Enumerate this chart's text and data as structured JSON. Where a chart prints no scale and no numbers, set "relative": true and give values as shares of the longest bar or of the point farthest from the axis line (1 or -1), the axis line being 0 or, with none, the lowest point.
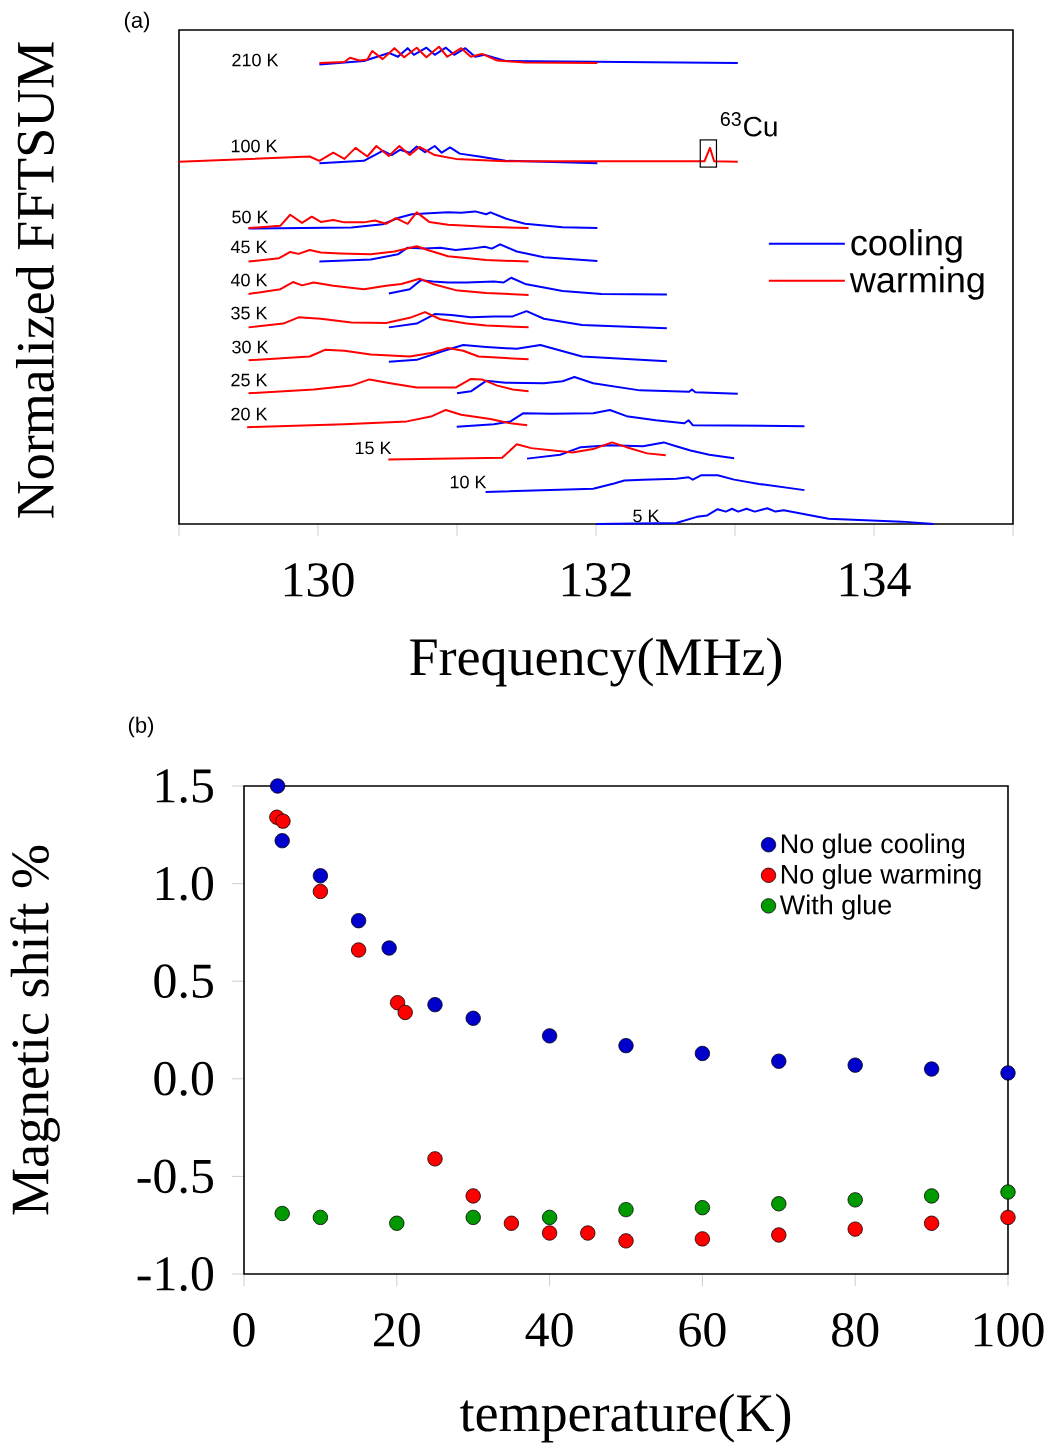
{
  "chart_data": [
    {
      "type": "line",
      "title": "(a)",
      "xlabel": "Frequency(MHz)",
      "ylabel": "Normalized FFTSUM",
      "relative": true,
      "xlim": [
        129,
        135
      ],
      "xticks": [
        {
          "value": 129,
          "label": null
        },
        130,
        {
          "value": 131,
          "label": null
        },
        132,
        {
          "value": 133,
          "label": null
        },
        134,
        {
          "value": 135,
          "label": null
        }
      ],
      "legend": "right",
      "series": [
        {
          "name": "cooling",
          "color": "#0000ff",
          "x": [
            130.01,
            130.33,
            130.51,
            130.575,
            130.645,
            130.69,
            130.78,
            130.84,
            130.92,
            130.98,
            131.06,
            131.13,
            131.2,
            131.35,
            133.02
          ],
          "values": [
            0.963,
            0.97,
            0.987,
            0.979,
            0.997,
            0.983,
            0.998,
            0.983,
            0.998,
            0.983,
            0.997,
            0.979,
            0.983,
            0.97,
            0.966
          ]
        },
        {
          "name": "warming",
          "color": "#ff0000",
          "x": [
            130.01,
            130.19,
            130.23,
            130.3,
            130.355,
            130.39,
            130.465,
            130.55,
            130.62,
            130.71,
            130.78,
            130.87,
            130.93,
            131.03,
            131.1,
            131.18,
            131.29,
            131.49,
            132.01
          ],
          "values": [
            0.966,
            0.968,
            0.977,
            0.971,
            0.973,
            0.991,
            0.974,
            0.997,
            0.978,
            0.998,
            0.978,
            1.0,
            0.979,
            0.997,
            0.979,
            0.985,
            0.971,
            0.967,
            0.966
          ]
        },
        {
          "color": "#0000ff",
          "x": [
            130.01,
            130.33,
            130.465,
            130.53,
            130.59,
            130.66,
            130.71,
            130.77,
            130.84,
            130.89,
            130.95,
            131.02,
            131.16,
            131.35,
            132.01
          ],
          "values": [
            0.756,
            0.761,
            0.782,
            0.773,
            0.784,
            0.778,
            0.791,
            0.779,
            0.792,
            0.778,
            0.789,
            0.776,
            0.77,
            0.761,
            0.756
          ]
        },
        {
          "color": "#ff0000",
          "x": [
            129.0,
            129.94,
            130.01,
            130.11,
            130.19,
            130.27,
            130.355,
            130.42,
            130.51,
            130.585,
            130.66,
            130.73,
            130.84,
            130.99,
            131.35,
            132.78,
            132.82,
            132.85,
            133.02
          ],
          "values": [
            0.759,
            0.77,
            0.761,
            0.778,
            0.765,
            0.788,
            0.77,
            0.792,
            0.771,
            0.792,
            0.773,
            0.79,
            0.773,
            0.765,
            0.76,
            0.76,
            0.788,
            0.76,
            0.759
          ]
        },
        {
          "color": "#0000ff",
          "x": [
            129.5,
            130.24,
            130.465,
            130.575,
            130.675,
            130.8,
            130.935,
            131.03,
            131.13,
            131.21,
            131.24,
            131.35,
            131.49,
            131.76,
            132.01
          ],
          "values": [
            0.619,
            0.621,
            0.628,
            0.641,
            0.649,
            0.651,
            0.653,
            0.652,
            0.655,
            0.649,
            0.653,
            0.64,
            0.629,
            0.622,
            0.62
          ]
        },
        {
          "color": "#ff0000",
          "x": [
            129.5,
            129.73,
            129.8,
            129.885,
            129.955,
            130.02,
            130.11,
            130.19,
            130.33,
            130.41,
            130.49,
            130.56,
            130.645,
            130.71,
            130.8,
            130.935,
            131.21,
            131.515
          ],
          "values": [
            0.62,
            0.625,
            0.648,
            0.631,
            0.644,
            0.633,
            0.637,
            0.632,
            0.632,
            0.636,
            0.629,
            0.641,
            0.629,
            0.653,
            0.633,
            0.627,
            0.623,
            0.62
          ]
        },
        {
          "color": "#0000ff",
          "x": [
            130.01,
            130.38,
            130.575,
            130.645,
            130.77,
            130.88,
            130.99,
            131.1,
            131.2,
            131.25,
            131.31,
            131.43,
            131.625,
            132.01
          ],
          "values": [
            0.55,
            0.554,
            0.565,
            0.579,
            0.577,
            0.579,
            0.574,
            0.577,
            0.581,
            0.577,
            0.586,
            0.571,
            0.559,
            0.551
          ]
        },
        {
          "color": "#ff0000",
          "x": [
            129.5,
            129.72,
            129.8,
            129.86,
            129.94,
            130.02,
            130.16,
            130.38,
            130.55,
            130.71,
            130.8,
            130.935,
            131.21,
            131.515
          ],
          "values": [
            0.55,
            0.557,
            0.57,
            0.566,
            0.574,
            0.569,
            0.567,
            0.565,
            0.571,
            0.582,
            0.573,
            0.561,
            0.553,
            0.55
          ]
        },
        {
          "color": "#0000ff",
          "x": [
            130.51,
            130.66,
            130.74,
            130.825,
            130.935,
            131.07,
            131.265,
            131.335,
            131.39,
            131.49,
            131.76,
            132.04,
            132.51
          ],
          "values": [
            0.483,
            0.492,
            0.511,
            0.508,
            0.506,
            0.506,
            0.508,
            0.506,
            0.516,
            0.503,
            0.488,
            0.482,
            0.481
          ]
        },
        {
          "color": "#ff0000",
          "x": [
            129.5,
            129.73,
            129.82,
            129.885,
            129.97,
            130.11,
            130.33,
            130.49,
            130.6,
            130.73,
            130.825,
            130.99,
            131.21,
            131.515
          ],
          "values": [
            0.482,
            0.492,
            0.507,
            0.5,
            0.506,
            0.499,
            0.492,
            0.499,
            0.503,
            0.514,
            0.503,
            0.49,
            0.484,
            0.48
          ]
        },
        {
          "color": "#0000ff",
          "x": [
            130.51,
            130.71,
            130.84,
            130.96,
            131.1,
            131.265,
            131.4,
            131.5,
            131.625,
            131.9,
            132.51
          ],
          "values": [
            0.412,
            0.42,
            0.44,
            0.438,
            0.433,
            0.435,
            0.435,
            0.446,
            0.43,
            0.417,
            0.41
          ]
        },
        {
          "color": "#ff0000",
          "x": [
            129.5,
            129.75,
            129.86,
            130.02,
            130.24,
            130.49,
            130.66,
            130.77,
            130.88,
            131.07,
            131.21,
            131.515
          ],
          "values": [
            0.412,
            0.42,
            0.433,
            0.43,
            0.422,
            0.421,
            0.432,
            0.444,
            0.429,
            0.42,
            0.416,
            0.412
          ]
        },
        {
          "color": "#0000ff",
          "x": [
            130.51,
            130.71,
            130.907,
            131.045,
            131.21,
            131.43,
            131.6,
            131.71,
            131.9,
            132.51
          ],
          "values": [
            0.34,
            0.344,
            0.363,
            0.375,
            0.371,
            0.367,
            0.375,
            0.366,
            0.351,
            0.341
          ]
        },
        {
          "color": "#ff0000",
          "x": [
            129.5,
            129.94,
            130.05,
            130.19,
            130.38,
            130.66,
            130.825,
            130.935,
            131.045,
            131.155,
            131.515
          ],
          "values": [
            0.343,
            0.351,
            0.365,
            0.363,
            0.355,
            0.351,
            0.359,
            0.369,
            0.363,
            0.351,
            0.345
          ]
        },
        {
          "color": "#0000ff",
          "x": [
            131.0,
            131.1,
            131.21,
            131.35,
            131.625,
            131.76,
            131.845,
            131.98,
            132.315,
            132.67,
            132.69,
            132.715,
            133.02
          ],
          "values": [
            0.274,
            0.278,
            0.3,
            0.296,
            0.295,
            0.299,
            0.308,
            0.295,
            0.28,
            0.277,
            0.282,
            0.276,
            0.273
          ]
        },
        {
          "color": "#ff0000",
          "x": [
            129.5,
            129.97,
            130.24,
            130.37,
            130.52,
            130.71,
            130.99,
            131.1,
            131.18,
            131.29,
            131.4,
            131.515
          ],
          "values": [
            0.274,
            0.282,
            0.29,
            0.303,
            0.295,
            0.286,
            0.286,
            0.304,
            0.303,
            0.29,
            0.282,
            0.278
          ]
        },
        {
          "color": "#0000ff",
          "x": [
            130.998,
            131.266,
            131.385,
            131.475,
            131.683,
            131.98,
            132.1,
            132.22,
            132.43,
            132.636,
            132.666,
            132.696,
            133.5
          ],
          "values": [
            0.204,
            0.209,
            0.215,
            0.232,
            0.231,
            0.232,
            0.239,
            0.226,
            0.2175,
            0.211,
            0.2175,
            0.207,
            0.205
          ]
        },
        {
          "color": "#ff0000",
          "x": [
            129.49,
            130.19,
            130.64,
            130.82,
            130.92,
            131.03,
            131.24,
            131.385,
            131.505
          ],
          "values": [
            0.203,
            0.209,
            0.215,
            0.226,
            0.239,
            0.229,
            0.22,
            0.211,
            0.207
          ]
        },
        {
          "color": "#0000ff",
          "x": [
            131.504,
            131.743,
            131.891,
            132.1,
            132.338,
            132.487,
            132.577,
            132.68,
            132.815,
            132.994
          ],
          "values": [
            0.137,
            0.145,
            0.161,
            0.165,
            0.163,
            0.171,
            0.163,
            0.154,
            0.145,
            0.138
          ]
        },
        {
          "color": "#ff0000",
          "x": [
            130.506,
            131.325,
            131.43,
            131.534,
            131.83,
            131.98,
            132.115,
            132.22,
            132.368,
            132.502
          ],
          "values": [
            0.135,
            0.139,
            0.167,
            0.159,
            0.15,
            0.157,
            0.171,
            0.161,
            0.148,
            0.144
          ]
        },
        {
          "color": "#0000ff",
          "x": [
            131.206,
            131.98,
            132.13,
            132.204,
            132.338,
            132.577,
            132.666,
            132.696,
            132.755,
            132.875,
            132.994,
            133.172,
            133.5
          ],
          "values": [
            0.067,
            0.074,
            0.085,
            0.091,
            0.093,
            0.095,
            0.098,
            0.093,
            0.102,
            0.102,
            0.093,
            0.084,
            0.071
          ]
        },
        {
          "color": "#0000ff",
          "x": [
            132.002,
            132.577,
            132.726,
            132.8,
            132.875,
            132.934,
            132.979,
            133.023,
            133.083,
            133.142,
            133.232,
            133.291,
            133.351,
            133.673,
            134.2,
            134.43
          ],
          "values": [
            0.0,
            0.002,
            0.015,
            0.018,
            0.031,
            0.026,
            0.032,
            0.026,
            0.032,
            0.026,
            0.033,
            0.026,
            0.029,
            0.011,
            0.005,
            0.0
          ]
        }
      ],
      "annotations": [
        "210 K",
        "100 K",
        "50 K",
        "45 K",
        "40 K",
        "35 K",
        "30 K",
        "25 K",
        "20 K",
        "15 K",
        "10 K",
        "5 K",
        {
          "text": "$^{63}$Cu",
          "x": 132.82,
          "y": 0.788
        }
      ]
    },
    {
      "type": "scatter",
      "title": "(b)",
      "xlabel": "temperature(K)",
      "ylabel": "Magnetic shift %",
      "xlim": [
        0,
        100
      ],
      "ylim": [
        -1.0,
        1.5
      ],
      "xticks": [
        0,
        20,
        40,
        60,
        80,
        100
      ],
      "yticks": [
        {
          "value": -1.0,
          "label": "-1.0"
        },
        -0.5,
        {
          "value": 0.0,
          "label": "0.0"
        },
        0.5,
        {
          "value": 1.0,
          "label": "1.0"
        },
        1.5
      ],
      "legend": "top right",
      "marker": "circle",
      "series": [
        {
          "name": "No glue cooling",
          "color": "#0000cc",
          "x": [
            4.4,
            5,
            10,
            15,
            19,
            25,
            30,
            40,
            50,
            60,
            70,
            80,
            90,
            100
          ],
          "values": [
            1.5,
            1.22,
            1.04,
            0.81,
            0.67,
            0.38,
            0.31,
            0.22,
            0.17,
            0.13,
            0.09,
            0.07,
            0.05,
            0.03
          ]
        },
        {
          "name": "No glue warming",
          "color": "#ff0000",
          "x": [
            4.3,
            5.1,
            10,
            15,
            20.1,
            21.1,
            25,
            30,
            35,
            40,
            45,
            50,
            60,
            70,
            80,
            90,
            100
          ],
          "values": [
            1.34,
            1.32,
            0.96,
            0.66,
            0.39,
            0.34,
            -0.41,
            -0.6,
            -0.74,
            -0.79,
            -0.79,
            -0.83,
            -0.82,
            -0.8,
            -0.77,
            -0.74,
            -0.71
          ]
        },
        {
          "name": "With glue",
          "color": "#009900",
          "x": [
            5,
            10,
            20,
            30,
            40,
            50,
            60,
            70,
            80,
            90,
            100
          ],
          "values": [
            -0.69,
            -0.71,
            -0.74,
            -0.71,
            -0.71,
            -0.67,
            -0.66,
            -0.64,
            -0.62,
            -0.6,
            -0.58
          ]
        }
      ]
    }
  ]
}
